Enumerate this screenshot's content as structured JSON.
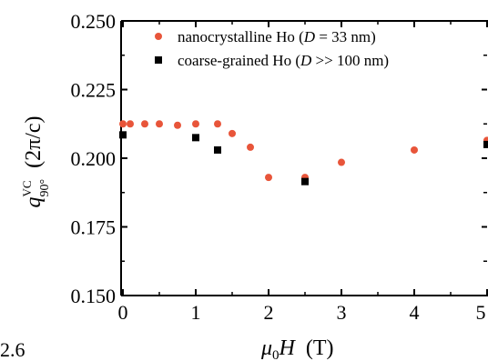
{
  "chart_data": {
    "type": "scatter",
    "xlabel": {
      "symbol": "μ",
      "subscript": "0",
      "variable": "H",
      "unit": "(T)"
    },
    "ylabel": {
      "symbol": "q",
      "superscript": "VC",
      "subscript": "90°",
      "unit": "(2π/c)"
    },
    "xlim": [
      0,
      5
    ],
    "ylim": [
      0.15,
      0.25
    ],
    "x_ticks": [
      "0",
      "1",
      "2",
      "3",
      "4",
      "5"
    ],
    "y_ticks": [
      "0.150",
      "0.175",
      "0.200",
      "0.225",
      "0.250"
    ],
    "grid": false,
    "legend_position": "top-right",
    "series": [
      {
        "name": "nanocrystalline Ho (D = 33 nm)",
        "legend": {
          "prefix": "nanocrystalline Ho (",
          "italic": "D",
          "suffix": " = 33 nm)"
        },
        "marker": "circle",
        "color": "#e8553a",
        "points": [
          {
            "x": 0.0,
            "y": 0.2125
          },
          {
            "x": 0.1,
            "y": 0.2125
          },
          {
            "x": 0.3,
            "y": 0.2125
          },
          {
            "x": 0.5,
            "y": 0.2125
          },
          {
            "x": 0.75,
            "y": 0.212
          },
          {
            "x": 1.0,
            "y": 0.2125
          },
          {
            "x": 1.3,
            "y": 0.2125
          },
          {
            "x": 1.5,
            "y": 0.209
          },
          {
            "x": 1.75,
            "y": 0.204
          },
          {
            "x": 2.0,
            "y": 0.193
          },
          {
            "x": 2.5,
            "y": 0.193
          },
          {
            "x": 3.0,
            "y": 0.1985
          },
          {
            "x": 4.0,
            "y": 0.203
          },
          {
            "x": 5.0,
            "y": 0.2065
          }
        ]
      },
      {
        "name": "coarse-grained Ho (D >> 100 nm)",
        "legend": {
          "prefix": "coarse-grained Ho (",
          "italic": "D",
          "suffix": " >> 100 nm)"
        },
        "marker": "square",
        "color": "#000000",
        "points": [
          {
            "x": 0.0,
            "y": 0.2085
          },
          {
            "x": 1.0,
            "y": 0.2075
          },
          {
            "x": 1.3,
            "y": 0.203
          },
          {
            "x": 2.5,
            "y": 0.1915
          },
          {
            "x": 5.0,
            "y": 0.205
          }
        ]
      }
    ],
    "edge_text": {
      "bottom_left": "2.6",
      "right_tick": "5"
    }
  }
}
